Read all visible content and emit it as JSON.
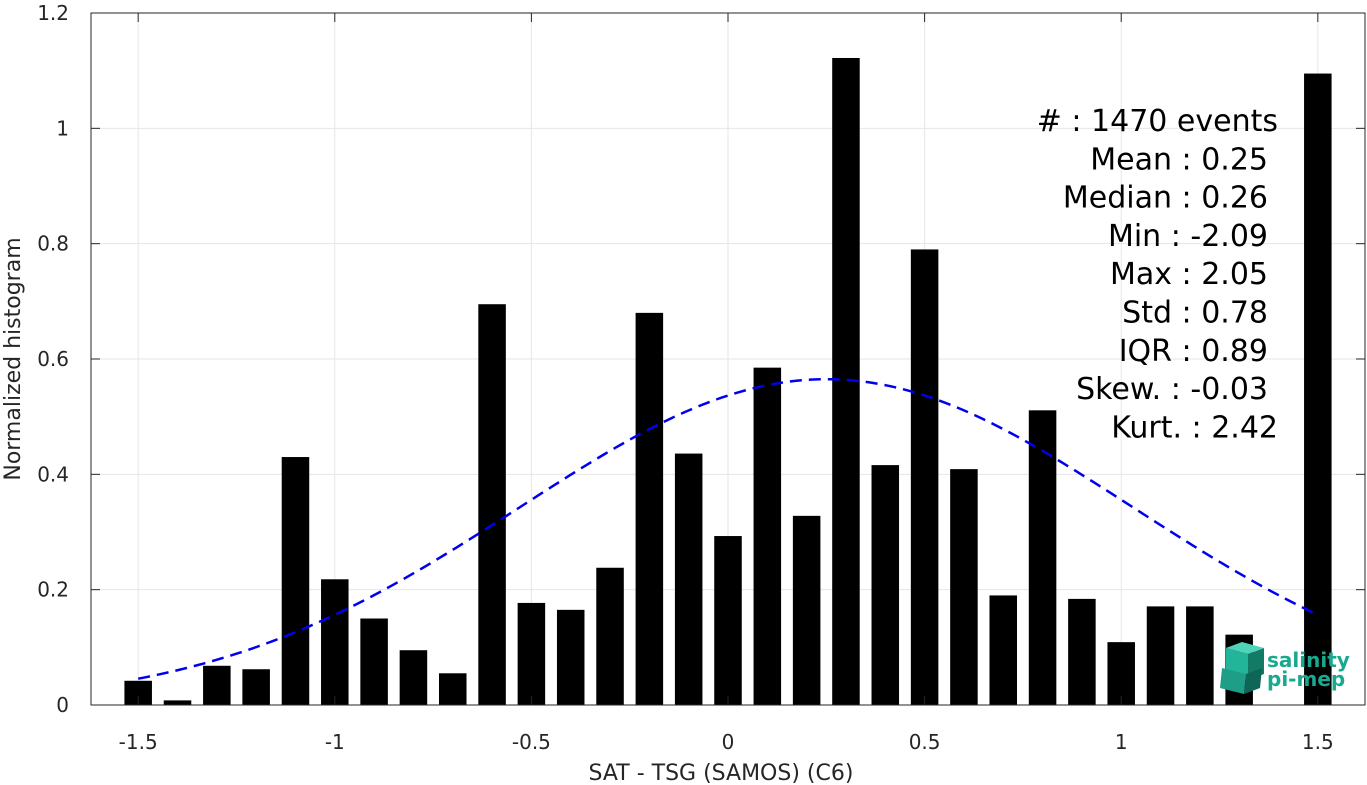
{
  "chart_data": {
    "type": "bar",
    "title": "",
    "xlabel": "SAT - TSG (SAMOS) (C6)",
    "ylabel": "Normalized histogram",
    "xlim": [
      -1.62,
      1.62
    ],
    "ylim": [
      0,
      1.2
    ],
    "grid": true,
    "bin_width": 0.1,
    "bin_centers": [
      -1.5,
      -1.4,
      -1.3,
      -1.2,
      -1.1,
      -1.0,
      -0.9,
      -0.8,
      -0.7,
      -0.6,
      -0.5,
      -0.4,
      -0.3,
      -0.2,
      -0.1,
      0.0,
      0.1,
      0.2,
      0.3,
      0.4,
      0.5,
      0.6,
      0.7,
      0.8,
      0.9,
      1.0,
      1.1,
      1.2,
      1.3,
      1.5
    ],
    "values": [
      0.042,
      0.008,
      0.068,
      0.062,
      0.43,
      0.218,
      0.15,
      0.095,
      0.055,
      0.695,
      0.177,
      0.165,
      0.238,
      0.68,
      0.436,
      0.293,
      0.585,
      0.328,
      1.122,
      0.416,
      0.79,
      0.409,
      0.19,
      0.511,
      0.184,
      0.109,
      0.171,
      0.171,
      0.122,
      1.095
    ],
    "xticks": [
      -1.5,
      -1,
      -0.5,
      0,
      0.5,
      1,
      1.5
    ],
    "xtick_labels": [
      "-1.5",
      "-1",
      "-0.5",
      "0",
      "0.5",
      "1",
      "1.5"
    ],
    "yticks": [
      0,
      0.2,
      0.4,
      0.6,
      0.8,
      1,
      1.2
    ],
    "ytick_labels": [
      "0",
      "0.2",
      "0.4",
      "0.6",
      "0.8",
      "1",
      "1.2"
    ],
    "fit_curve": {
      "style": "dashed",
      "color": "#0000ee",
      "distribution": "normal",
      "mean": 0.25,
      "std": 0.78,
      "peak": 0.565,
      "x_range": [
        -1.5,
        1.5
      ]
    },
    "bar_color": "#000000",
    "stats_lines": [
      "#  : 1470 events",
      "Mean : 0.25",
      "Median : 0.26",
      "Min : -2.09",
      "Max : 2.05",
      "Std : 0.78",
      "IQR : 0.89",
      "Skew. : -0.03",
      "Kurt. : 2.42"
    ]
  },
  "logo": {
    "line1": "salinity",
    "line2": "pi-mep",
    "color": "#1aa88f"
  }
}
